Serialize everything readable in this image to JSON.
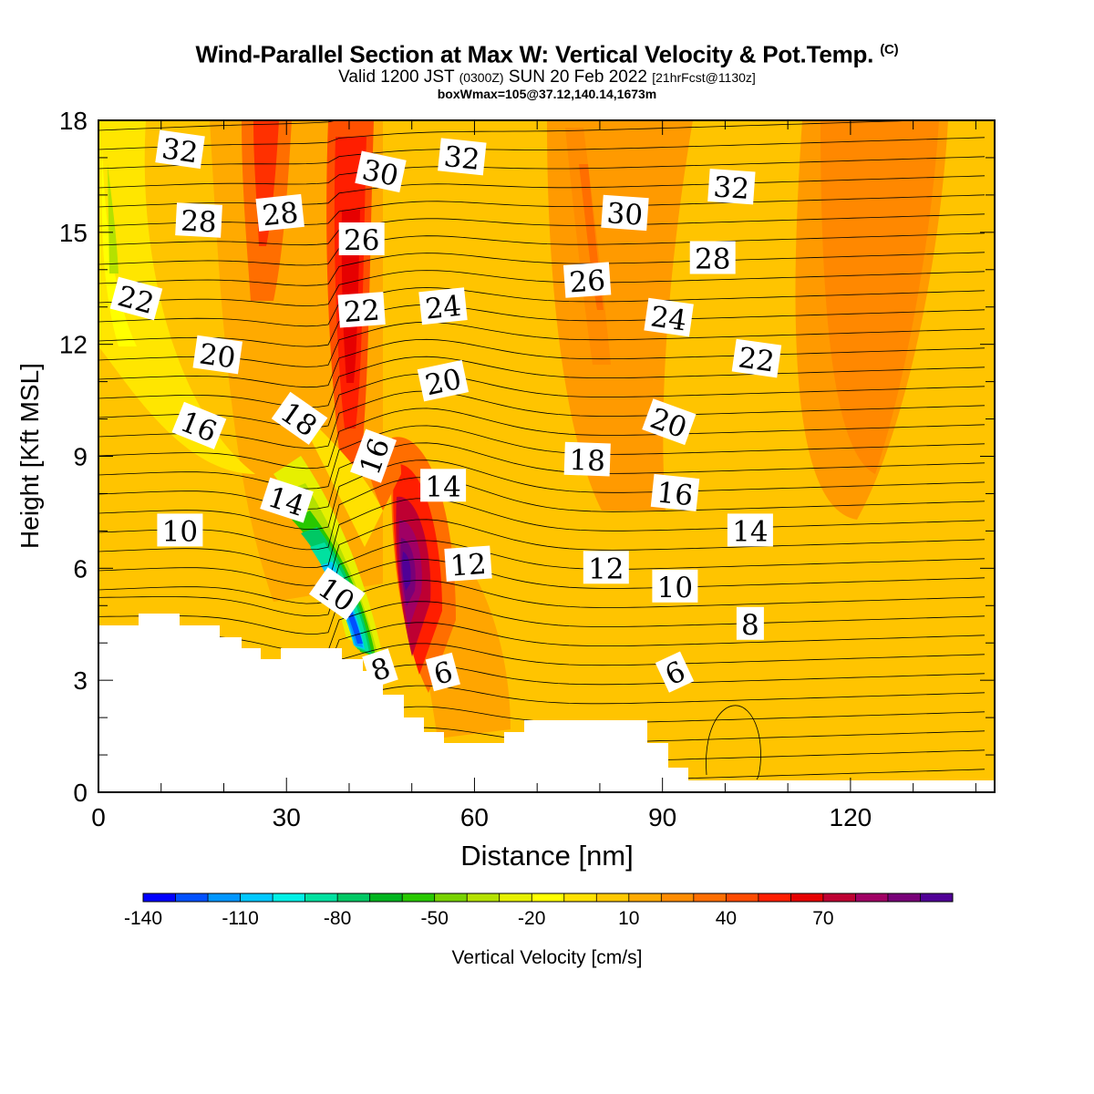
{
  "header": {
    "title": "Wind-Parallel Section at Max W: Vertical Velocity & Pot.Temp.",
    "title_mark": "(C)",
    "valid_prefix": "Valid 1200 JST",
    "valid_z": "(0300Z)",
    "valid_date": "SUN 20 Feb 2022",
    "valid_fcst": "[21hrFcst@1130z]",
    "boxwmax": "boxWmax=105@37.12,140.14,1673m"
  },
  "colorbar": {
    "label": "Vertical Velocity [cm/s]",
    "ticks": [
      "-140",
      "-110",
      "-80",
      "-50",
      "-20",
      "10",
      "40",
      "70"
    ],
    "colors": [
      "#0000ff",
      "#0050ff",
      "#0096ff",
      "#00c8ff",
      "#00f0e6",
      "#00e1a0",
      "#00c864",
      "#00b41e",
      "#28c800",
      "#78d200",
      "#b4e100",
      "#e6f000",
      "#ffff00",
      "#ffe100",
      "#ffc800",
      "#ffaa00",
      "#ff8c00",
      "#ff6e00",
      "#ff4b00",
      "#ff1e00",
      "#e60000",
      "#be0032",
      "#a00064",
      "#780078",
      "#500096"
    ]
  },
  "chart_data": {
    "type": "heatmap",
    "title": "Wind-Parallel Section at Max W: Vertical Velocity & Pot.Temp.",
    "xlabel": "Distance [nm]",
    "ylabel": "Height [Kft MSL]",
    "xlim": [
      0,
      143
    ],
    "ylim": [
      0,
      18
    ],
    "x_ticks": [
      0,
      30,
      60,
      90,
      120
    ],
    "y_ticks": [
      0,
      3,
      6,
      9,
      12,
      15,
      18
    ],
    "fill_variable": "Vertical Velocity [cm/s]",
    "contour_variable": "Potential Temperature",
    "contour_labels": [
      {
        "text": "32",
        "x": 13,
        "y": 17.2
      },
      {
        "text": "30",
        "x": 45,
        "y": 16.6
      },
      {
        "text": "32",
        "x": 58,
        "y": 17.0
      },
      {
        "text": "32",
        "x": 101,
        "y": 16.2
      },
      {
        "text": "28",
        "x": 16,
        "y": 15.3
      },
      {
        "text": "28",
        "x": 29,
        "y": 15.5
      },
      {
        "text": "26",
        "x": 42,
        "y": 14.8
      },
      {
        "text": "30",
        "x": 84,
        "y": 15.5
      },
      {
        "text": "28",
        "x": 98,
        "y": 14.3
      },
      {
        "text": "26",
        "x": 78,
        "y": 13.7
      },
      {
        "text": "22",
        "x": 6,
        "y": 13.2
      },
      {
        "text": "22",
        "x": 42,
        "y": 12.9
      },
      {
        "text": "24",
        "x": 55,
        "y": 13.0
      },
      {
        "text": "24",
        "x": 91,
        "y": 12.7
      },
      {
        "text": "22",
        "x": 105,
        "y": 11.6
      },
      {
        "text": "20",
        "x": 19,
        "y": 11.7
      },
      {
        "text": "20",
        "x": 55,
        "y": 11.0
      },
      {
        "text": "18",
        "x": 32,
        "y": 10.0
      },
      {
        "text": "20",
        "x": 91,
        "y": 9.9
      },
      {
        "text": "16",
        "x": 16,
        "y": 9.8
      },
      {
        "text": "16",
        "x": 44,
        "y": 9.0
      },
      {
        "text": "18",
        "x": 78,
        "y": 8.9
      },
      {
        "text": "14",
        "x": 55,
        "y": 8.2
      },
      {
        "text": "16",
        "x": 92,
        "y": 8.0
      },
      {
        "text": "14",
        "x": 30,
        "y": 7.8
      },
      {
        "text": "10",
        "x": 13,
        "y": 7.0
      },
      {
        "text": "14",
        "x": 104,
        "y": 7.0
      },
      {
        "text": "12",
        "x": 59,
        "y": 6.1
      },
      {
        "text": "12",
        "x": 81,
        "y": 6.0
      },
      {
        "text": "10",
        "x": 38,
        "y": 5.3
      },
      {
        "text": "10",
        "x": 92,
        "y": 5.5
      },
      {
        "text": "8",
        "x": 104,
        "y": 4.5
      },
      {
        "text": "8",
        "x": 45,
        "y": 3.3
      },
      {
        "text": "6",
        "x": 55,
        "y": 3.2
      },
      {
        "text": "6",
        "x": 92,
        "y": 3.2
      }
    ]
  }
}
